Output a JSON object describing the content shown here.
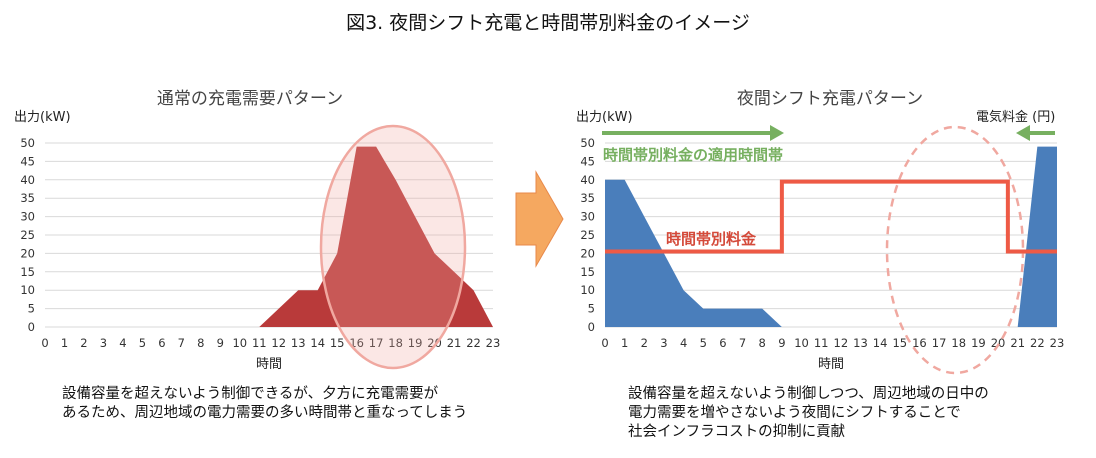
{
  "title": "図3. 夜間シフト充電と時間帯別料金のイメージ",
  "left": {
    "title": "通常の充電需要パターン",
    "ylabel": "出力(kW)",
    "xlabel": "時間",
    "caption_lines": [
      "設備容量を超えないよう制御できるが、夕方に充電需要が",
      "あるため、周辺地域の電力需要の多い時間帯と重なってしまう"
    ]
  },
  "right": {
    "title": "夜間シフト充電パターン",
    "ylabel": "出力(kW)",
    "xlabel": "時間",
    "price_label": "電気料金 (円)",
    "tou_period_label": "時間帯別料金の適用時間帯",
    "tou_line_label": "時間帯別料金",
    "caption_lines": [
      "設備容量を超えないよう制御しつつ、周辺地域の日中の",
      "電力需要を増やさないよう夜間にシフトすることで",
      "社会インフラコストの抑制に貢献"
    ]
  },
  "colors": {
    "normal_area": "#b93a3a",
    "shift_area": "#4a7ebb",
    "price_line": "#ee5a45",
    "tou_arrow": "#77b060",
    "ellipse": "#f0a8a0",
    "grid": "#d9d9d9",
    "shift_arrow": "#f5a860"
  },
  "chart_data": [
    {
      "type": "area",
      "title": "通常の充電需要パターン",
      "xlabel": "時間",
      "ylabel": "出力(kW)",
      "x": [
        0,
        1,
        2,
        3,
        4,
        5,
        6,
        7,
        8,
        9,
        10,
        11,
        12,
        13,
        14,
        15,
        16,
        17,
        18,
        19,
        20,
        21,
        22,
        23
      ],
      "xlim": [
        0,
        23
      ],
      "ylim": [
        0,
        50
      ],
      "yticks": [
        0,
        5,
        10,
        15,
        20,
        25,
        30,
        35,
        40,
        45,
        50
      ],
      "grid": true,
      "series": [
        {
          "values": [
            0,
            0,
            0,
            0,
            0,
            0,
            0,
            0,
            0,
            0,
            0,
            0,
            5,
            10,
            10,
            20,
            49,
            49,
            40,
            30,
            20,
            15,
            10,
            0
          ]
        }
      ]
    },
    {
      "type": "area",
      "title": "夜間シフト充電パターン",
      "xlabel": "時間",
      "ylabel": "出力(kW)",
      "x": [
        0,
        1,
        2,
        3,
        4,
        5,
        6,
        7,
        8,
        9,
        10,
        11,
        12,
        13,
        14,
        15,
        16,
        17,
        18,
        19,
        20,
        21,
        22,
        23
      ],
      "xlim": [
        0,
        23
      ],
      "ylim": [
        0,
        50
      ],
      "yticks": [
        0,
        5,
        10,
        15,
        20,
        25,
        30,
        35,
        40,
        45,
        50
      ],
      "grid": true,
      "series": [
        {
          "values": [
            40,
            40,
            30,
            20,
            10,
            5,
            5,
            5,
            5,
            0,
            0,
            0,
            0,
            0,
            0,
            0,
            0,
            0,
            0,
            0,
            0,
            0,
            49,
            49
          ]
        },
        {
          "name": "時間帯別料金",
          "type": "step-line",
          "x": [
            0,
            9,
            9,
            20.5,
            20.5,
            23
          ],
          "values": [
            20.5,
            20.5,
            39.5,
            39.5,
            20.5,
            20.5
          ]
        }
      ],
      "annotations": [
        "時間帯別料金の適用時間帯",
        "電気料金 (円)"
      ]
    }
  ]
}
